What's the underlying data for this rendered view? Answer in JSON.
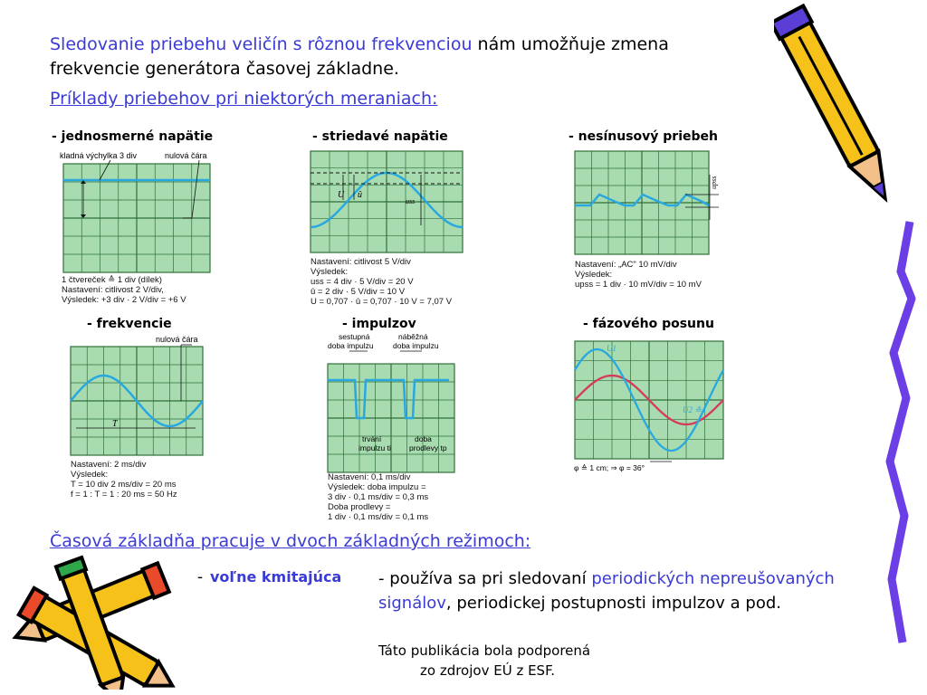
{
  "intro": {
    "highlight": "Sledovanie priebehu veličín s rôznou frekvenciou",
    "rest": " nám umožňuje zmena frekvencie generátora časovej základne."
  },
  "examples_heading": "Príklady priebehov pri niektorých meraniach:",
  "panels": [
    {
      "caption": "- jednosmerné napätie",
      "labels": [
        "kladná výchylka 3 div",
        "nulová čára"
      ],
      "notes": [
        "1 čtvereček ≙ 1 div (dílek)",
        "Nastavení: citlivost 2 V/div,",
        "Výsledek: +3 div · 2 V/div = +6 V"
      ]
    },
    {
      "caption": "- striedavé napätie",
      "labels": [
        "U",
        "û",
        "uss"
      ],
      "notes": [
        "Nastavení: citlivost 5 V/div",
        "Výsledek:",
        "uss = 4 div · 5 V/div = 20 V",
        "û = 2 div · 5 V/div = 10 V",
        "U = 0,707 · û = 0,707 · 10 V = 7,07 V"
      ]
    },
    {
      "caption": "- nesínusový priebeh",
      "labels": [
        "upss"
      ],
      "notes": [
        "Nastavení: „AC\" 10 mV/div",
        "Výsledek:",
        "upss = 1 div · 10 mV/div = 10 mV"
      ]
    },
    {
      "caption": "- frekvencie",
      "labels": [
        "nulová čára",
        "T"
      ],
      "notes": [
        "Nastavení: 2 ms/div",
        "Výsledek:",
        "T = 10 div  2 ms/div = 20 ms",
        "f = 1 : T = 1 : 20 ms = 50 Hz"
      ]
    },
    {
      "caption": "- impulzov",
      "labels": [
        "sestupná",
        "doba impulzu",
        "náběžná",
        "doba impulzu",
        "trvání",
        "impulzu ti",
        "doba",
        "prodlevy tp"
      ],
      "notes": [
        "Nastavení: 0,1 ms/div",
        "Výsledek: doba impulzu =",
        "3 div · 0,1 ms/div = 0,3 ms",
        "Doba prodlevy =",
        "1 div · 0,1 ms/div = 0,1 ms"
      ]
    },
    {
      "caption": "- fázového posunu",
      "labels": [
        "U1",
        "U2 ≙ I"
      ],
      "notes": [
        "φ ≙ 1 cm; ⇒ φ = 36°"
      ]
    }
  ],
  "modes_heading": "Časová základňa pracuje v dvoch základných režimoch:",
  "mode": {
    "dash": "-",
    "name": "voľne kmitajúca",
    "desc_a": "- používa sa pri sledovaní ",
    "desc_b": "periodických nepreušovaných signálov",
    "desc_c": ", periodickej postupnosti impulzov a pod."
  },
  "esf": [
    "Táto publikácia bola podporená",
    "zo zdrojov EÚ z ESF."
  ],
  "colors": {
    "accent": "#3a3ad6",
    "trace": "#29a8e0",
    "grid_bg": "#a8dcb0",
    "grid_line": "#2f6f3a",
    "phase_red": "#d63a5a"
  },
  "icons": [
    "pencil-icon",
    "pencil-icon",
    "pencil-icon"
  ]
}
